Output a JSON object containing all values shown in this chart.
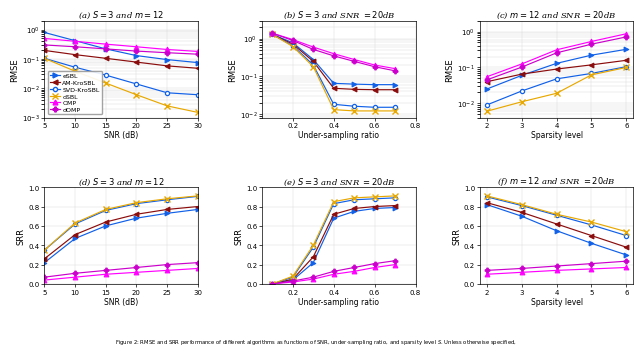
{
  "plot_a": {
    "x": [
      5,
      10,
      15,
      20,
      25,
      30
    ],
    "xlabel": "SNR (dB)",
    "ylabel": "RMSE",
    "title": "(a) $S = 3$ and $m = 12$",
    "ySBL": [
      0.8,
      0.42,
      0.22,
      0.13,
      0.095,
      0.075
    ],
    "yAM": [
      0.195,
      0.14,
      0.105,
      0.078,
      0.058,
      0.048
    ],
    "ySVD": [
      0.105,
      0.052,
      0.028,
      0.014,
      0.007,
      0.006
    ],
    "ydSBL": [
      0.105,
      0.038,
      0.015,
      0.006,
      0.0025,
      0.0015
    ],
    "yOMP": [
      0.5,
      0.4,
      0.32,
      0.26,
      0.21,
      0.18
    ],
    "ydOMP": [
      0.3,
      0.26,
      0.22,
      0.185,
      0.163,
      0.145
    ],
    "ylim": [
      0.001,
      2.0
    ],
    "xlim": [
      5,
      30
    ]
  },
  "plot_b": {
    "x": [
      0.1,
      0.2,
      0.3,
      0.4,
      0.5,
      0.6,
      0.7
    ],
    "xlabel": "Under-sampling ratio",
    "ylabel": "RMSE",
    "title": "(b) $S = 3$ and SNR $= 20$dB",
    "ySBL": [
      1.3,
      0.78,
      0.28,
      0.065,
      0.062,
      0.06,
      0.06
    ],
    "yAM": [
      1.3,
      0.72,
      0.25,
      0.048,
      0.045,
      0.044,
      0.044
    ],
    "ySVD": [
      1.3,
      0.65,
      0.2,
      0.018,
      0.016,
      0.015,
      0.015
    ],
    "ydSBL": [
      1.3,
      0.62,
      0.18,
      0.013,
      0.012,
      0.012,
      0.012
    ],
    "yOMP": [
      1.4,
      0.95,
      0.6,
      0.4,
      0.28,
      0.2,
      0.16
    ],
    "ydOMP": [
      1.4,
      0.9,
      0.52,
      0.35,
      0.25,
      0.18,
      0.14
    ],
    "ylim": [
      0.008,
      3.0
    ],
    "xlim": [
      0.05,
      0.8
    ]
  },
  "plot_c": {
    "x": [
      2,
      3,
      4,
      5,
      6
    ],
    "xlabel": "Sparsity level",
    "ylabel": "RMSE",
    "title": "(c) $m = 12$ and SNR $= 20$dB",
    "ySBL": [
      0.025,
      0.06,
      0.13,
      0.22,
      0.32
    ],
    "yAM": [
      0.04,
      0.065,
      0.09,
      0.118,
      0.158
    ],
    "ySVD": [
      0.009,
      0.022,
      0.048,
      0.068,
      0.105
    ],
    "ydSBL": [
      0.006,
      0.011,
      0.019,
      0.062,
      0.1
    ],
    "yOMP": [
      0.055,
      0.125,
      0.31,
      0.53,
      0.87
    ],
    "ydOMP": [
      0.045,
      0.102,
      0.255,
      0.445,
      0.71
    ],
    "ylim": [
      0.004,
      2.0
    ],
    "xlim": [
      1.8,
      6.2
    ]
  },
  "plot_d": {
    "x": [
      5,
      10,
      15,
      20,
      25,
      30
    ],
    "xlabel": "SNR (dB)",
    "ylabel": "SRR",
    "title": "(d) $S = 3$ and $m = 12$",
    "ySBL": [
      0.22,
      0.47,
      0.6,
      0.68,
      0.73,
      0.77
    ],
    "yAM": [
      0.26,
      0.51,
      0.64,
      0.72,
      0.77,
      0.8
    ],
    "ySVD": [
      0.35,
      0.62,
      0.76,
      0.83,
      0.87,
      0.905
    ],
    "ydSBL": [
      0.35,
      0.63,
      0.77,
      0.84,
      0.88,
      0.91
    ],
    "yOMP": [
      0.04,
      0.07,
      0.1,
      0.12,
      0.14,
      0.16
    ],
    "ydOMP": [
      0.07,
      0.11,
      0.14,
      0.17,
      0.2,
      0.22
    ],
    "ylim": [
      0.0,
      1.0
    ],
    "xlim": [
      5,
      30
    ]
  },
  "plot_e": {
    "x": [
      0.1,
      0.2,
      0.3,
      0.4,
      0.5,
      0.6,
      0.7
    ],
    "xlabel": "Under-sampling ratio",
    "ylabel": "SRR",
    "title": "(e) $S = 3$ and SNR $= 20$dB",
    "ySBL": [
      0.0,
      0.04,
      0.22,
      0.68,
      0.75,
      0.78,
      0.79
    ],
    "yAM": [
      0.0,
      0.05,
      0.28,
      0.72,
      0.78,
      0.8,
      0.81
    ],
    "ySVD": [
      0.0,
      0.07,
      0.38,
      0.83,
      0.87,
      0.88,
      0.89
    ],
    "ydSBL": [
      0.0,
      0.08,
      0.4,
      0.85,
      0.89,
      0.9,
      0.91
    ],
    "yOMP": [
      0.0,
      0.02,
      0.05,
      0.1,
      0.13,
      0.17,
      0.2
    ],
    "ydOMP": [
      0.0,
      0.03,
      0.07,
      0.13,
      0.17,
      0.21,
      0.24
    ],
    "ylim": [
      0.0,
      1.0
    ],
    "xlim": [
      0.05,
      0.8
    ]
  },
  "plot_f": {
    "x": [
      2,
      3,
      4,
      5,
      6
    ],
    "xlabel": "Sparsity level",
    "ylabel": "SRR",
    "title": "(f) $m = 12$ and SNR $= 20$dB",
    "ySBL": [
      0.82,
      0.7,
      0.55,
      0.42,
      0.3
    ],
    "yAM": [
      0.84,
      0.74,
      0.62,
      0.5,
      0.38
    ],
    "ySVD": [
      0.9,
      0.81,
      0.71,
      0.61,
      0.5
    ],
    "ydSBL": [
      0.91,
      0.82,
      0.72,
      0.64,
      0.54
    ],
    "yOMP": [
      0.1,
      0.12,
      0.14,
      0.155,
      0.17
    ],
    "ydOMP": [
      0.14,
      0.16,
      0.185,
      0.21,
      0.235
    ],
    "ylim": [
      0.0,
      1.0
    ],
    "xlim": [
      1.8,
      6.2
    ]
  },
  "colors": {
    "eSBL": "#1060e8",
    "AM-KroSBL": "#8b0c0c",
    "SVD-KroSBL": "#1060e8",
    "dSBL": "#e8a800",
    "OMP": "#ff00ff",
    "dOMP": "#cc00cc"
  },
  "markers": {
    "eSBL": ">",
    "AM-KroSBL": "<",
    "SVD-KroSBL": "o",
    "dSBL": "x",
    "OMP": "^",
    "dOMP": "P"
  },
  "markersizes": {
    "eSBL": 3.5,
    "AM-KroSBL": 3.5,
    "SVD-KroSBL": 3.0,
    "dSBL": 4.0,
    "OMP": 3.5,
    "dOMP": 3.5
  },
  "legend_labels": [
    "eSBL",
    "AM-KroSBL",
    "SVD-KroSBL",
    "dSBL",
    "OMP",
    "dOMP"
  ],
  "caption": "Figure 2: RMSE and SRR performance of different algorithms as functions of SNR, under-sampling ratio, and sparsity level $S$. Unless otherwise specified, $N_t = 4$, $N_r = 4$, $L = 4$, $M_t = 4$, $M_r = 4$."
}
